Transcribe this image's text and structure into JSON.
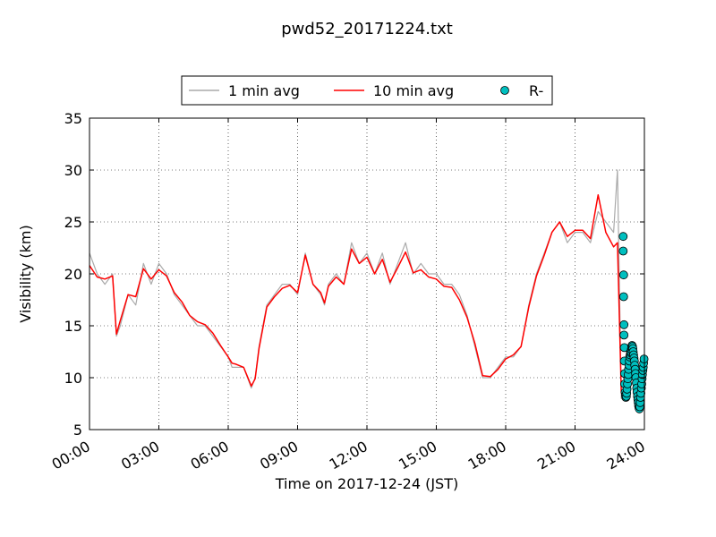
{
  "chart_data": {
    "type": "line",
    "title": "pwd52_20171224.txt",
    "xlabel": "Time on 2017-12-24 (JST)",
    "ylabel": "Visibility (km)",
    "xlim": [
      "00:00",
      "24:00"
    ],
    "ylim": [
      5,
      35
    ],
    "grid": true,
    "legend_position": "top-center, outside plot area",
    "x_ticks": [
      "00:00",
      "03:00",
      "06:00",
      "09:00",
      "12:00",
      "15:00",
      "18:00",
      "21:00",
      "24:00"
    ],
    "y_ticks": [
      5,
      10,
      15,
      20,
      25,
      30,
      35
    ],
    "colors": {
      "one_min": "#aaaaaa",
      "ten_min": "#ff0000",
      "rain_marker": "#00bfbf"
    },
    "series": [
      {
        "name": "1 min avg",
        "style": "line",
        "x": [
          "00:00",
          "00:20",
          "00:40",
          "01:00",
          "01:10",
          "01:20",
          "01:40",
          "02:00",
          "02:20",
          "02:40",
          "03:00",
          "03:20",
          "03:40",
          "04:00",
          "04:20",
          "04:40",
          "05:00",
          "05:20",
          "05:40",
          "06:00",
          "06:10",
          "06:20",
          "06:40",
          "07:00",
          "07:10",
          "07:20",
          "07:40",
          "08:00",
          "08:20",
          "08:40",
          "09:00",
          "09:20",
          "09:40",
          "10:00",
          "10:10",
          "10:20",
          "10:40",
          "11:00",
          "11:20",
          "11:40",
          "12:00",
          "12:20",
          "12:40",
          "13:00",
          "13:20",
          "13:40",
          "14:00",
          "14:20",
          "14:40",
          "15:00",
          "15:20",
          "15:40",
          "16:00",
          "16:20",
          "16:40",
          "17:00",
          "17:20",
          "17:40",
          "18:00",
          "18:20",
          "18:40",
          "19:00",
          "19:20",
          "19:40",
          "20:00",
          "20:20",
          "20:40",
          "21:00",
          "21:20",
          "21:40",
          "22:00",
          "22:20",
          "22:40",
          "22:50",
          "23:00",
          "23:10",
          "23:20",
          "23:30",
          "23:40",
          "23:50",
          "24:00"
        ],
        "y": [
          22,
          20,
          19,
          20,
          14,
          15,
          18,
          17,
          21,
          19,
          21,
          20,
          18,
          17,
          16,
          15,
          15,
          14,
          13,
          12,
          11,
          11,
          11,
          9,
          10,
          13,
          17,
          18,
          19,
          19,
          18,
          22,
          19,
          18,
          17,
          19,
          20,
          19,
          23,
          21,
          22,
          20,
          22,
          19,
          21,
          23,
          20,
          21,
          20,
          20,
          19,
          19,
          18,
          16,
          13,
          10,
          10,
          11,
          12,
          12,
          13,
          17,
          20,
          22,
          24,
          25,
          23,
          24,
          24,
          23,
          26,
          25,
          24,
          30,
          8,
          9,
          11,
          13,
          12,
          8,
          7
        ]
      },
      {
        "name": "10 min avg",
        "style": "line",
        "x": [
          "00:00",
          "00:20",
          "00:40",
          "01:00",
          "01:10",
          "01:20",
          "01:40",
          "02:00",
          "02:20",
          "02:40",
          "03:00",
          "03:20",
          "03:40",
          "04:00",
          "04:20",
          "04:40",
          "05:00",
          "05:20",
          "05:40",
          "06:00",
          "06:10",
          "06:20",
          "06:40",
          "07:00",
          "07:10",
          "07:20",
          "07:40",
          "08:00",
          "08:20",
          "08:40",
          "09:00",
          "09:20",
          "09:40",
          "10:00",
          "10:10",
          "10:20",
          "10:40",
          "11:00",
          "11:20",
          "11:40",
          "12:00",
          "12:20",
          "12:40",
          "13:00",
          "13:20",
          "13:40",
          "14:00",
          "14:20",
          "14:40",
          "15:00",
          "15:20",
          "15:40",
          "16:00",
          "16:20",
          "16:40",
          "17:00",
          "17:20",
          "17:40",
          "18:00",
          "18:20",
          "18:40",
          "19:00",
          "19:20",
          "19:40",
          "20:00",
          "20:20",
          "20:40",
          "21:00",
          "21:20",
          "21:40",
          "22:00",
          "22:20",
          "22:40",
          "22:50",
          "23:00"
        ],
        "y": [
          20.8,
          19.7,
          19.5,
          19.8,
          14.2,
          15.5,
          18.0,
          17.8,
          20.5,
          19.5,
          20.4,
          19.8,
          18.2,
          17.3,
          16.0,
          15.4,
          15.1,
          14.3,
          13.1,
          12.0,
          11.4,
          11.3,
          11.0,
          9.2,
          9.9,
          12.8,
          16.8,
          17.8,
          18.6,
          18.9,
          18.2,
          21.8,
          19.0,
          18.2,
          17.2,
          18.8,
          19.7,
          19.0,
          22.4,
          21.0,
          21.6,
          20.0,
          21.4,
          19.2,
          20.6,
          22.1,
          20.1,
          20.4,
          19.7,
          19.5,
          18.8,
          18.7,
          17.5,
          15.8,
          13.3,
          10.2,
          10.1,
          10.8,
          11.8,
          12.2,
          13.0,
          16.8,
          19.8,
          21.8,
          24.0,
          25.0,
          23.6,
          24.2,
          24.2,
          23.4,
          27.6,
          24.0,
          22.6,
          23.0,
          8.5
        ]
      },
      {
        "name": "R-",
        "style": "markers",
        "x": [
          "23:05",
          "23:05",
          "23:06",
          "23:06",
          "23:07",
          "23:07",
          "23:08",
          "23:08",
          "23:09",
          "23:09",
          "23:10",
          "23:11",
          "23:12",
          "23:13",
          "23:14",
          "23:15",
          "23:16",
          "23:17",
          "23:18",
          "23:19",
          "23:20",
          "23:21",
          "23:22",
          "23:23",
          "23:24",
          "23:25",
          "23:26",
          "23:27",
          "23:28",
          "23:29",
          "23:30",
          "23:31",
          "23:32",
          "23:33",
          "23:34",
          "23:35",
          "23:36",
          "23:37",
          "23:38",
          "23:39",
          "23:40",
          "23:41",
          "23:42",
          "23:43",
          "23:44",
          "23:45",
          "23:46",
          "23:47",
          "23:48",
          "23:49",
          "23:50",
          "23:51",
          "23:52",
          "23:53",
          "23:54",
          "23:55",
          "23:56",
          "23:57",
          "23:58",
          "23:59"
        ],
        "y": [
          23.6,
          22.2,
          19.9,
          17.8,
          15.1,
          14.1,
          12.9,
          11.6,
          10.4,
          9.4,
          8.6,
          8.3,
          8.1,
          8.2,
          8.5,
          8.9,
          9.4,
          9.9,
          10.3,
          10.8,
          11.2,
          11.6,
          12.0,
          12.2,
          12.4,
          12.5,
          12.7,
          12.9,
          13.1,
          13.0,
          12.8,
          12.5,
          12.2,
          11.9,
          11.6,
          11.2,
          10.8,
          10.4,
          10.0,
          9.5,
          9.0,
          8.6,
          8.2,
          7.9,
          7.6,
          7.3,
          7.1,
          7.0,
          7.2,
          7.6,
          8.1,
          8.5,
          9.0,
          9.4,
          9.9,
          10.3,
          10.7,
          11.0,
          11.4,
          11.8
        ]
      }
    ]
  }
}
